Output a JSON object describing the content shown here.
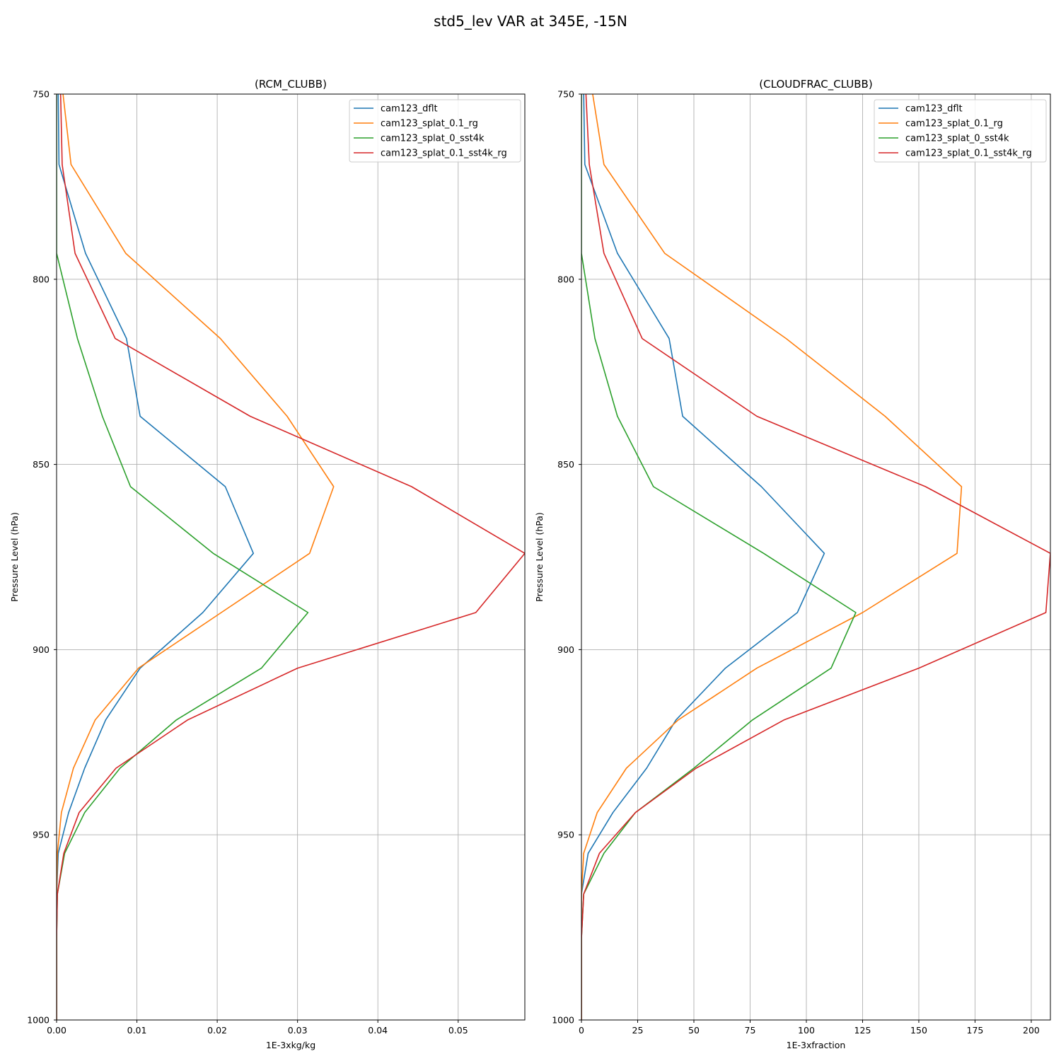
{
  "figure": {
    "suptitle": "std5_lev VAR at 345E, -15N"
  },
  "colors": {
    "cam123_dflt": "#1f77b4",
    "cam123_splat_0.1_rg": "#ff7f0e",
    "cam123_splat_0_sst4k": "#2ca02c",
    "cam123_splat_0.1_sst4k_rg": "#d62728"
  },
  "chart_data": [
    {
      "type": "line",
      "title": "(RCM_CLUBB)",
      "xlabel": "1E-3xkg/kg",
      "ylabel": "Pressure Level (hPa)",
      "xlim": [
        0,
        0.0583
      ],
      "ylim": [
        1000,
        750
      ],
      "y_inverted": true,
      "xticks": [
        "0.00",
        "0.01",
        "0.02",
        "0.03",
        "0.04",
        "0.05"
      ],
      "xtick_values": [
        0,
        0.01,
        0.02,
        0.03,
        0.04,
        0.05
      ],
      "yticks": [
        "750",
        "800",
        "850",
        "900",
        "950",
        "1000"
      ],
      "ytick_values": [
        750,
        800,
        850,
        900,
        950,
        1000
      ],
      "grid": true,
      "legend_position": "top-right",
      "series": [
        {
          "name": "cam123_dflt",
          "x": [
            0.0002,
            0.0003,
            0.0036,
            0.0087,
            0.0104,
            0.021,
            0.0245,
            0.0182,
            0.0104,
            0.0061,
            0.0035,
            0.0015,
            0.0002,
            0.0,
            0.0,
            0.0,
            0.0
          ],
          "y": [
            750,
            769,
            793,
            816,
            837,
            856,
            874,
            890,
            905,
            919,
            932,
            944,
            955,
            966,
            978,
            990,
            1000
          ]
        },
        {
          "name": "cam123_splat_0.1_rg",
          "x": [
            0.0008,
            0.0018,
            0.0086,
            0.0204,
            0.0287,
            0.0345,
            0.0315,
            0.0205,
            0.0102,
            0.0048,
            0.0021,
            0.0006,
            0.0001,
            0.0,
            0.0,
            0.0,
            0.0
          ],
          "y": [
            750,
            769,
            793,
            816,
            837,
            856,
            874,
            890,
            905,
            919,
            932,
            944,
            955,
            966,
            978,
            990,
            1000
          ]
        },
        {
          "name": "cam123_splat_0_sst4k",
          "x": [
            0.0,
            0.0,
            0.0,
            0.0026,
            0.0057,
            0.0092,
            0.0195,
            0.0313,
            0.0255,
            0.0149,
            0.0079,
            0.0035,
            0.001,
            0.0001,
            0.0,
            0.0,
            0.0
          ],
          "y": [
            750,
            769,
            793,
            816,
            837,
            856,
            874,
            890,
            905,
            919,
            932,
            944,
            955,
            966,
            978,
            990,
            1000
          ]
        },
        {
          "name": "cam123_splat_0.1_sst4k_rg",
          "x": [
            0.0005,
            0.0007,
            0.0023,
            0.0073,
            0.0241,
            0.0442,
            0.0583,
            0.0522,
            0.03,
            0.0163,
            0.0074,
            0.0028,
            0.0009,
            0.0001,
            0.0,
            0.0,
            0.0
          ],
          "y": [
            750,
            769,
            793,
            816,
            837,
            856,
            874,
            890,
            905,
            919,
            932,
            944,
            955,
            966,
            978,
            990,
            1000
          ]
        }
      ]
    },
    {
      "type": "line",
      "title": "(CLOUDFRAC_CLUBB)",
      "xlabel": "1E-3xfraction",
      "ylabel": "Pressure Level (hPa)",
      "xlim": [
        0,
        208.5
      ],
      "ylim": [
        1000,
        750
      ],
      "y_inverted": true,
      "xticks": [
        "0",
        "25",
        "50",
        "75",
        "100",
        "125",
        "150",
        "175",
        "200"
      ],
      "xtick_values": [
        0,
        25,
        50,
        75,
        100,
        125,
        150,
        175,
        200
      ],
      "yticks": [
        "750",
        "800",
        "850",
        "900",
        "950",
        "1000"
      ],
      "ytick_values": [
        750,
        800,
        850,
        900,
        950,
        1000
      ],
      "grid": true,
      "legend_position": "top-right",
      "series": [
        {
          "name": "cam123_dflt",
          "x": [
            1.0,
            1.5,
            16.0,
            39.0,
            45.0,
            80.0,
            108.0,
            96.0,
            64.0,
            42.0,
            29.0,
            14.0,
            3.0,
            0.0,
            0.0,
            0.0,
            0.0
          ],
          "y": [
            750,
            769,
            793,
            816,
            837,
            856,
            874,
            890,
            905,
            919,
            932,
            944,
            955,
            966,
            978,
            990,
            1000
          ]
        },
        {
          "name": "cam123_splat_0.1_rg",
          "x": [
            5.0,
            10.0,
            37.0,
            91.0,
            135.0,
            169.0,
            167.0,
            125.0,
            78.0,
            43.0,
            20.0,
            7.0,
            1.0,
            0.0,
            0.0,
            0.0,
            0.0
          ],
          "y": [
            750,
            769,
            793,
            816,
            837,
            856,
            874,
            890,
            905,
            919,
            932,
            944,
            955,
            966,
            978,
            990,
            1000
          ]
        },
        {
          "name": "cam123_splat_0_sst4k",
          "x": [
            0.0,
            0.0,
            0.0,
            6.0,
            16.0,
            32.0,
            81.0,
            122.0,
            111.0,
            76.0,
            50.0,
            24.0,
            10.0,
            1.0,
            0.0,
            0.0,
            0.0
          ],
          "y": [
            750,
            769,
            793,
            816,
            837,
            856,
            874,
            890,
            905,
            919,
            932,
            944,
            955,
            966,
            978,
            990,
            1000
          ]
        },
        {
          "name": "cam123_splat_0.1_sst4k_rg",
          "x": [
            2.0,
            3.5,
            10.0,
            27.0,
            78.0,
            153.0,
            208.5,
            206.5,
            150.0,
            90.0,
            51.0,
            24.0,
            8.0,
            1.0,
            0.0,
            0.0,
            0.0
          ],
          "y": [
            750,
            769,
            793,
            816,
            837,
            856,
            874,
            890,
            905,
            919,
            932,
            944,
            955,
            966,
            978,
            990,
            1000
          ]
        }
      ]
    }
  ]
}
